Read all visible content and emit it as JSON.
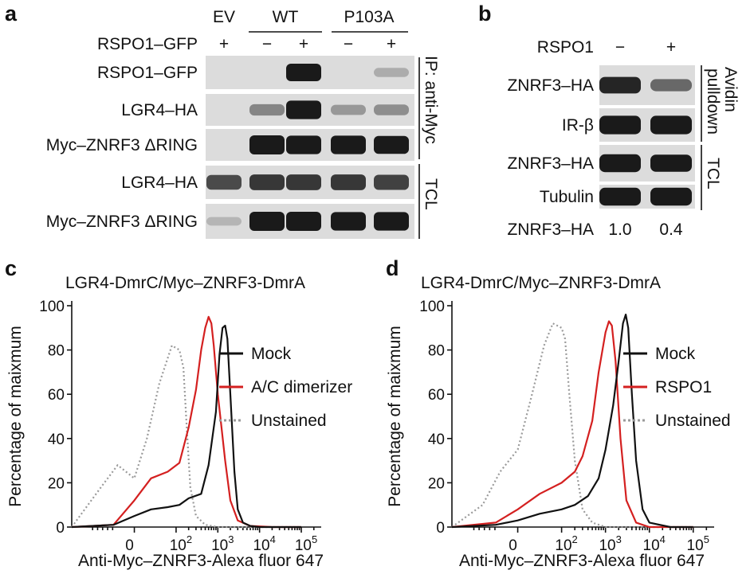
{
  "panel_a": {
    "letter": "a",
    "groups": [
      "EV",
      "WT",
      "P103A"
    ],
    "treat_label": "RSPO1–GFP",
    "treat_signs": [
      "+",
      "−",
      "+",
      "−",
      "+"
    ],
    "rows": [
      {
        "label": "RSPO1–GFP",
        "bands": [
          0,
          0,
          0.85,
          0,
          0.1
        ]
      },
      {
        "label": "LGR4–HA",
        "bands": [
          0,
          0.3,
          0.95,
          0.2,
          0.25
        ]
      },
      {
        "label": "Myc–ZNRF3 ΔRING",
        "bands": [
          0,
          1,
          0.95,
          0.95,
          0.9
        ]
      },
      {
        "label": "LGR4–HA",
        "bands": [
          0.6,
          0.7,
          0.7,
          0.7,
          0.65
        ]
      },
      {
        "label": "Myc–ZNRF3 ΔRING",
        "bands": [
          0.05,
          1,
          1,
          0.95,
          0.95
        ]
      }
    ],
    "side_ip": "IP: anti-Myc",
    "side_tcl": "TCL"
  },
  "panel_b": {
    "letter": "b",
    "treat_label": "RSPO1",
    "treat_signs": [
      "−",
      "+"
    ],
    "rows": [
      {
        "label": "ZNRF3–HA",
        "bands": [
          0.8,
          0.45
        ]
      },
      {
        "label": "IR-β",
        "bands": [
          0.95,
          0.95
        ]
      },
      {
        "label": "ZNRF3–HA",
        "bands": [
          0.9,
          0.85
        ]
      },
      {
        "label": "Tubulin",
        "bands": [
          0.9,
          0.9
        ]
      }
    ],
    "side_pulldown_1": "Avidin",
    "side_pulldown_2": "pulldown",
    "side_tcl": "TCL",
    "quant_label": "ZNRF3–HA",
    "quant_values": [
      "1.0",
      "0.4"
    ]
  },
  "chart_data": [
    {
      "letter": "c",
      "type": "line",
      "title": "LGR4-DmrC/Myc–ZNRF3-DmrA",
      "xlabel": "Anti-Myc–ZNRF3-Alexa fluor 647",
      "ylabel": "Percentage of maixmum",
      "x_scale": "log",
      "xlim": [
        -150,
        300000
      ],
      "ylim": [
        0,
        100
      ],
      "y_ticks": [
        "0",
        "20",
        "40",
        "60",
        "80",
        "100"
      ],
      "x_ticks": [
        {
          "base": "0",
          "exp": ""
        },
        {
          "base": "10",
          "exp": "2"
        },
        {
          "base": "10",
          "exp": "3"
        },
        {
          "base": "10",
          "exp": "4"
        },
        {
          "base": "10",
          "exp": "5"
        }
      ],
      "legend_position": "right",
      "series": [
        {
          "name": "Mock",
          "color": "#111111",
          "style": "solid",
          "x": [
            -150,
            -50,
            0,
            40,
            80,
            120,
            200,
            400,
            600,
            900,
            1100,
            1300,
            1500,
            1700,
            2000,
            2500,
            3000,
            4000,
            6000,
            10000,
            30000,
            100000
          ],
          "y": [
            0,
            1,
            5,
            8,
            9,
            10,
            13,
            15,
            28,
            52,
            78,
            90,
            91,
            85,
            60,
            25,
            8,
            2,
            0.5,
            0,
            0,
            0
          ]
        },
        {
          "name": "A/C dimerizer",
          "color": "#d42020",
          "style": "solid",
          "x": [
            -150,
            -50,
            0,
            40,
            80,
            120,
            200,
            300,
            400,
            500,
            600,
            700,
            800,
            1000,
            1500,
            2000,
            3000,
            6000,
            20000,
            100000
          ],
          "y": [
            0,
            1,
            12,
            22,
            25,
            29,
            45,
            62,
            80,
            90,
            95,
            92,
            82,
            60,
            30,
            12,
            3,
            0.5,
            0,
            0
          ]
        },
        {
          "name": "Unstained",
          "color": "#9a9a9a",
          "style": "dotted",
          "x": [
            -150,
            -80,
            -40,
            0,
            30,
            60,
            90,
            120,
            150,
            180,
            220,
            300,
            500,
            1000,
            3000,
            100000
          ],
          "y": [
            0,
            18,
            28,
            22,
            40,
            65,
            82,
            80,
            72,
            45,
            18,
            5,
            1,
            0,
            0,
            0
          ]
        }
      ]
    },
    {
      "letter": "d",
      "type": "line",
      "title": "LGR4-DmrC/Myc–ZNRF3-DmrA",
      "xlabel": "Anti-Myc–ZNRF3-Alexa fluor 647",
      "ylabel": "Percentage of maixmum",
      "x_scale": "log",
      "xlim": [
        -150,
        300000
      ],
      "ylim": [
        0,
        100
      ],
      "y_ticks": [
        "0",
        "20",
        "40",
        "60",
        "80",
        "100"
      ],
      "x_ticks": [
        {
          "base": "0",
          "exp": ""
        },
        {
          "base": "10",
          "exp": "2"
        },
        {
          "base": "10",
          "exp": "3"
        },
        {
          "base": "10",
          "exp": "4"
        },
        {
          "base": "10",
          "exp": "5"
        }
      ],
      "legend_position": "right",
      "series": [
        {
          "name": "Mock",
          "color": "#111111",
          "style": "solid",
          "x": [
            -150,
            -50,
            0,
            50,
            100,
            200,
            400,
            700,
            1000,
            1500,
            2000,
            2500,
            2900,
            3300,
            4000,
            5000,
            7000,
            10000,
            30000,
            100000
          ],
          "y": [
            0,
            1,
            3,
            6,
            8,
            10,
            14,
            22,
            35,
            55,
            75,
            92,
            96,
            90,
            60,
            30,
            8,
            2,
            0,
            0
          ]
        },
        {
          "name": "RSPO1",
          "color": "#d42020",
          "style": "solid",
          "x": [
            -150,
            -50,
            0,
            50,
            100,
            200,
            300,
            500,
            700,
            1000,
            1200,
            1400,
            1700,
            2200,
            3000,
            5000,
            10000,
            100000
          ],
          "y": [
            0,
            2,
            8,
            15,
            20,
            25,
            32,
            48,
            70,
            88,
            93,
            91,
            75,
            40,
            12,
            2,
            0,
            0
          ]
        },
        {
          "name": "Unstained",
          "color": "#9a9a9a",
          "style": "dotted",
          "x": [
            -150,
            -80,
            -40,
            0,
            30,
            60,
            80,
            100,
            120,
            150,
            200,
            300,
            500,
            1000,
            3000,
            100000
          ],
          "y": [
            0,
            10,
            25,
            35,
            58,
            82,
            92,
            90,
            85,
            60,
            30,
            8,
            2,
            0,
            0,
            0
          ]
        }
      ]
    }
  ]
}
